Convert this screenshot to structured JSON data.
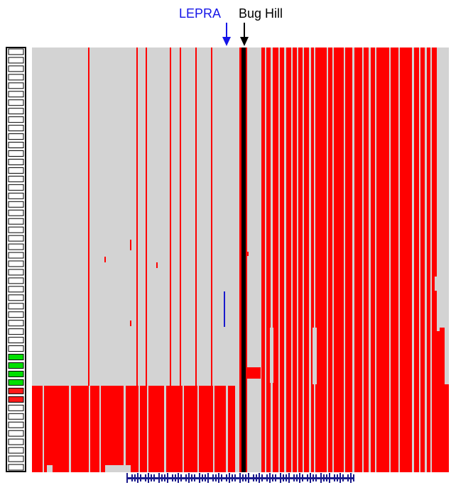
{
  "markers": {
    "lepra": {
      "label": "LEPRA",
      "color": "#1515e8"
    },
    "bug_hill": {
      "label": "Bug Hill",
      "color": "#000000"
    }
  },
  "colors": {
    "background_cell": "#d3d3d3",
    "allele_cell": "#ff0000",
    "hilight_line": "#000000",
    "lepra_trace": "#1a1acc",
    "key_green": "#00e000",
    "key_red": "#ff1a1a",
    "gene_model": "#1a1a8c"
  },
  "legend_key": {
    "rows": 50,
    "green_rows": [
      36,
      37,
      38,
      39
    ],
    "red_rows": [
      40,
      41
    ]
  },
  "icons": {
    "lepra_arrow": "down-arrow-icon",
    "bug_hill_arrow": "down-arrow-icon"
  }
}
